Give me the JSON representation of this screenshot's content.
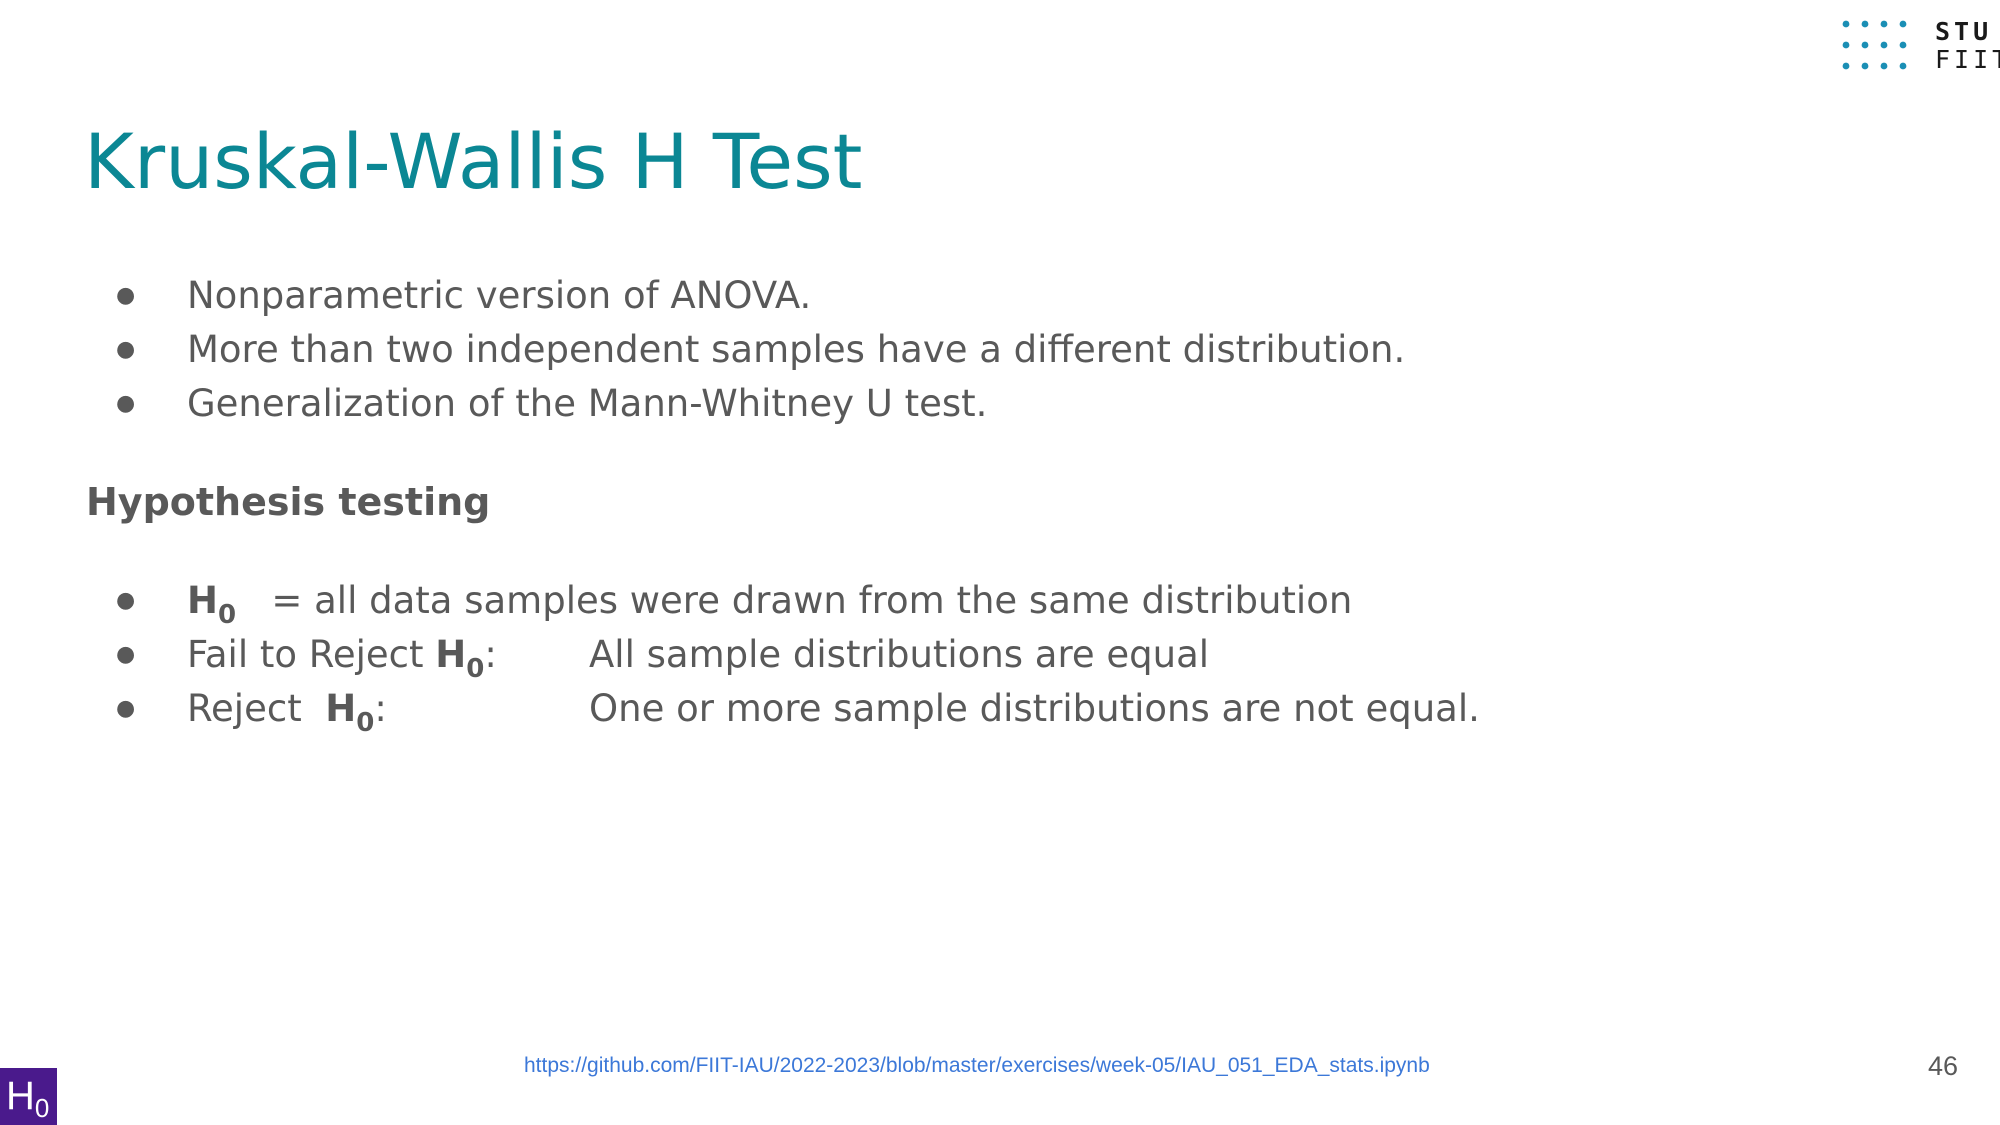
{
  "logo": {
    "line1": "STU",
    "line2": "FIIT",
    "dot_color": "#1a8fb5",
    "text_color": "#1a1a1a"
  },
  "title": "Kruskal-Wallis H Test",
  "intro_bullets": [
    "Nonparametric version of ANOVA.",
    "More than two independent samples have a different distribution.",
    "Generalization of the Mann-Whitney U test."
  ],
  "subheading": "Hypothesis testing",
  "hypothesis": {
    "bullet_symbol": "●",
    "h_letter": "H",
    "h_subscript": "0",
    "null_text": "= all data samples were drawn from the same distribution",
    "fail_label": "Fail to Reject",
    "fail_colon": ":",
    "fail_text": "All sample distributions are equal",
    "reject_label": "Reject",
    "reject_colon": ":",
    "reject_text": "One or more sample distributions are not equal."
  },
  "footer": {
    "link": "https://github.com/FIIT-IAU/2022-2023/blob/master/exercises/week-05/IAU_051_EDA_stats.ipynb",
    "page_number": "46"
  },
  "badge": {
    "letter": "H",
    "subscript": "0",
    "color": "#4a1a8c"
  },
  "colors": {
    "title": "#0b8794",
    "body_text": "#595959",
    "link": "#3c78d8"
  }
}
